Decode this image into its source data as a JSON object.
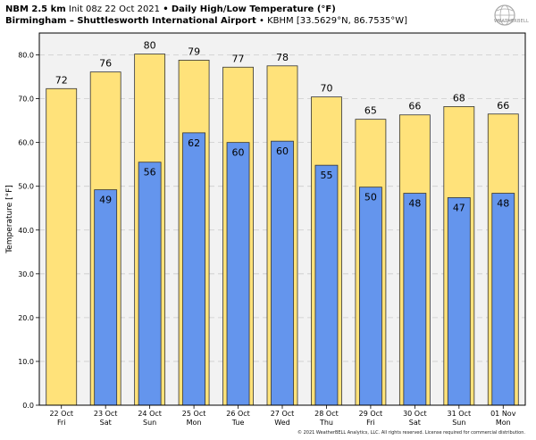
{
  "header": {
    "model": "NBM 2.5 km",
    "init": "Init 08z 22 Oct 2021",
    "bullet": "•",
    "product": "Daily High/Low Temperature (°F)",
    "location": "Birmingham – Shuttlesworth International Airport",
    "station": "• KBHM [33.5629°N, 86.7535°W]"
  },
  "logo": {
    "text": "WEATHERBELL",
    "icon": "weatherbell-globe-logo"
  },
  "footer": "© 2021 WeatherBELL Analytics, LLC. All rights reserved. License required for commercial distribution.",
  "colors": {
    "high": "#ffe27a",
    "low": "#6495ed",
    "plot_bg": "#f2f2f2",
    "grid": "#cccccc"
  },
  "chart_data": {
    "type": "bar",
    "ylabel": "Temperature [°F]",
    "ylim": [
      0,
      85
    ],
    "yticks": [
      0.0,
      10.0,
      20.0,
      30.0,
      40.0,
      50.0,
      60.0,
      70.0,
      80.0
    ],
    "grid": "horizontal dashed",
    "categories": [
      {
        "date": "22 Oct",
        "day": "Fri"
      },
      {
        "date": "23 Oct",
        "day": "Sat"
      },
      {
        "date": "24 Oct",
        "day": "Sun"
      },
      {
        "date": "25 Oct",
        "day": "Mon"
      },
      {
        "date": "26 Oct",
        "day": "Tue"
      },
      {
        "date": "27 Oct",
        "day": "Wed"
      },
      {
        "date": "28 Oct",
        "day": "Thu"
      },
      {
        "date": "29 Oct",
        "day": "Fri"
      },
      {
        "date": "30 Oct",
        "day": "Sat"
      },
      {
        "date": "31 Oct",
        "day": "Sun"
      },
      {
        "date": "01 Nov",
        "day": "Mon"
      }
    ],
    "series": [
      {
        "key": "high",
        "precise": [
          72.3,
          76.1,
          80.2,
          78.8,
          77.2,
          77.5,
          70.4,
          65.3,
          66.3,
          68.2,
          66.5
        ],
        "labels": [
          72,
          76,
          80,
          79,
          77,
          78,
          70,
          65,
          66,
          68,
          66
        ]
      },
      {
        "key": "low",
        "precise": [
          null,
          49.2,
          55.5,
          62.2,
          60.0,
          60.3,
          54.8,
          49.8,
          48.4,
          47.4,
          48.4
        ],
        "labels": [
          null,
          49,
          56,
          62,
          60,
          60,
          55,
          50,
          48,
          47,
          48
        ]
      }
    ]
  }
}
